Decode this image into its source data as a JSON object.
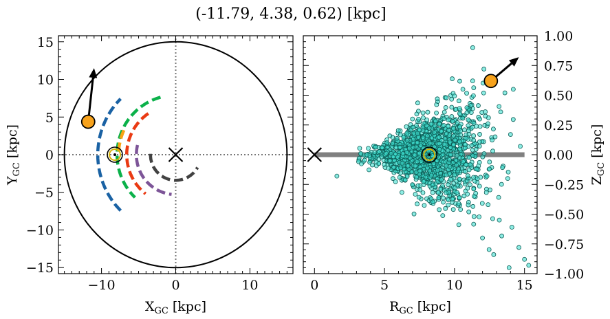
{
  "title": "(-11.79, 4.38, 0.62) [kpc]",
  "chart_data": [
    {
      "type": "scatter",
      "panel": "left",
      "xlabel": {
        "main": "X",
        "sub": "GC",
        "rest": " [kpc]"
      },
      "ylabel": {
        "main": "Y",
        "sub": "GC",
        "rest": " [kpc]"
      },
      "xlim": [
        -15.8,
        15.8
      ],
      "ylim": [
        -15.8,
        15.8
      ],
      "xticks": [
        -10,
        0,
        10
      ],
      "xtick_labels": [
        "−10",
        "0",
        "10"
      ],
      "yticks": [
        -15,
        -10,
        -5,
        0,
        5,
        10,
        15
      ],
      "ytick_labels": [
        "−15",
        "−10",
        "−5",
        "0",
        "5",
        "10",
        "15"
      ],
      "boundary_circle_radius": 15,
      "galactic_center": [
        0,
        0
      ],
      "sun_position": [
        -8.2,
        0
      ],
      "object_position": [
        -11.79,
        4.38
      ],
      "velocity_arrow_tip": [
        -11.0,
        11.5
      ],
      "arms": [
        {
          "color": "#1a62a4",
          "radius": 10.5,
          "start_deg": 225,
          "end_deg": 135
        },
        {
          "color": "#0bb14a",
          "radius": 7.9,
          "start_deg": 105,
          "end_deg": 226
        },
        {
          "color": "#f7a312",
          "radius": 7.7,
          "start_deg": 155,
          "end_deg": 177
        },
        {
          "color": "#ea3a13",
          "radius": 6.6,
          "start_deg": 124,
          "end_deg": 232
        },
        {
          "color": "#7d5598",
          "radius": 5.3,
          "start_deg": 166,
          "end_deg": 264
        },
        {
          "color": "#424242",
          "radius": 3.4,
          "start_deg": 178,
          "end_deg": 330
        }
      ],
      "grid": false
    },
    {
      "type": "scatter",
      "panel": "right",
      "xlabel": {
        "main": "R",
        "sub": "GC",
        "rest": " [kpc]"
      },
      "ylabel": {
        "main": "Z",
        "sub": "GC",
        "rest": " [kpc]"
      },
      "xlim": [
        -0.8,
        15.9
      ],
      "ylim": [
        -1.0,
        1.0
      ],
      "xticks": [
        0,
        5,
        10,
        15
      ],
      "xtick_labels": [
        "0",
        "5",
        "10",
        "15"
      ],
      "yticks": [
        -1.0,
        -0.75,
        -0.5,
        -0.25,
        0.0,
        0.25,
        0.5,
        0.75,
        1.0
      ],
      "ytick_labels": [
        "−1.00",
        "−0.75",
        "−0.50",
        "−0.25",
        "0.00",
        "0.25",
        "0.50",
        "0.75",
        "1.00"
      ],
      "disk_line": {
        "x_start": 0,
        "x_end": 15,
        "z": 0
      },
      "galactic_center": [
        0,
        0
      ],
      "sun_position": [
        8.2,
        0
      ],
      "object_position": [
        12.6,
        0.62
      ],
      "velocity_arrow_tip": [
        14.6,
        0.82
      ],
      "star_points": [
        [
          8.2,
          0.0
        ],
        [
          9.1,
          0.12
        ],
        [
          10.6,
          0.55
        ],
        [
          11.3,
          0.9
        ],
        [
          12.1,
          0.72
        ],
        [
          13.3,
          0.36
        ],
        [
          14.0,
          0.17
        ],
        [
          12.4,
          -0.42
        ],
        [
          13.2,
          -0.55
        ],
        [
          14.1,
          -0.61
        ],
        [
          14.6,
          -0.78
        ],
        [
          15.0,
          -0.88
        ],
        [
          15.3,
          -0.93
        ],
        [
          13.9,
          -0.95
        ],
        [
          12.8,
          -0.84
        ],
        [
          12.0,
          -0.7
        ],
        [
          11.4,
          -0.52
        ],
        [
          10.3,
          -0.41
        ],
        [
          9.4,
          -0.32
        ],
        [
          6.6,
          0.18
        ],
        [
          5.4,
          -0.05
        ],
        [
          4.3,
          0.02
        ],
        [
          3.3,
          0.01
        ],
        [
          1.6,
          -0.18
        ],
        [
          7.4,
          -0.26
        ],
        [
          13.6,
          0.52
        ],
        [
          14.2,
          0.55
        ],
        [
          12.9,
          0.15
        ],
        [
          11.8,
          0.3
        ],
        [
          10.2,
          0.27
        ],
        [
          10.9,
          -0.22
        ],
        [
          12.5,
          -0.12
        ],
        [
          13.8,
          -0.2
        ],
        [
          14.7,
          0.07
        ]
      ],
      "grid": false
    }
  ]
}
